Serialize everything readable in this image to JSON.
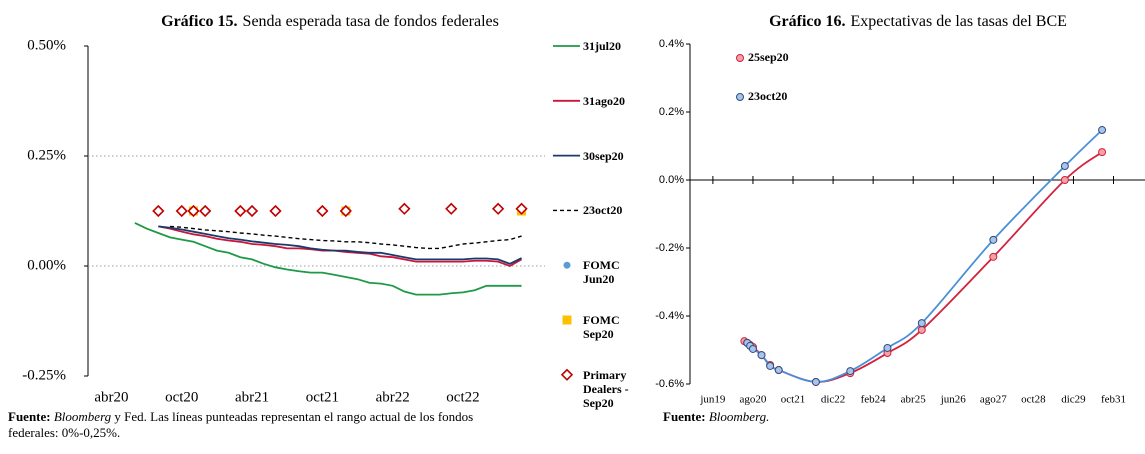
{
  "chart_data": [
    {
      "type": "line",
      "label": "Gráfico 15.",
      "title": "Senda esperada tasa de fondos federales",
      "source_label": "Fuente:",
      "source": "Bloomberg",
      "note": "y Fed. Las líneas punteadas representan el rango actual de los fondos federales: 0%-0,25%.",
      "xlim": [
        "2020-02",
        "2023-05"
      ],
      "xticks": [
        {
          "value": "2020-04",
          "label": "abr20"
        },
        {
          "value": "2020-10",
          "label": "oct20"
        },
        {
          "value": "2021-04",
          "label": "abr21"
        },
        {
          "value": "2021-10",
          "label": "oct21"
        },
        {
          "value": "2022-04",
          "label": "abr22"
        },
        {
          "value": "2022-10",
          "label": "oct22"
        }
      ],
      "ylim": [
        -0.25,
        0.5
      ],
      "yticks": [
        {
          "value": -0.25,
          "label": "-0.25%"
        },
        {
          "value": 0,
          "label": "0.00%"
        },
        {
          "value": 0.25,
          "label": "0.25%"
        },
        {
          "value": 0.5,
          "label": "0.50%"
        }
      ],
      "hlines": [
        0,
        0.25
      ],
      "legend": "right",
      "x": [
        "2020-06",
        "2020-07",
        "2020-08",
        "2020-09",
        "2020-10",
        "2020-11",
        "2020-12",
        "2021-01",
        "2021-02",
        "2021-03",
        "2021-04",
        "2021-05",
        "2021-06",
        "2021-07",
        "2021-08",
        "2021-09",
        "2021-10",
        "2021-11",
        "2021-12",
        "2022-01",
        "2022-02",
        "2022-03",
        "2022-04",
        "2022-05",
        "2022-06",
        "2022-07",
        "2022-08",
        "2022-09",
        "2022-10",
        "2022-11",
        "2022-12",
        "2023-01",
        "2023-02",
        "2023-03"
      ],
      "series": [
        {
          "name": "31jul20",
          "color": "#1e9a45",
          "line": "solid",
          "values": [
            0.098,
            0.085,
            0.075,
            0.065,
            0.06,
            0.055,
            0.045,
            0.035,
            0.03,
            0.02,
            0.015,
            0.005,
            -0.003,
            -0.008,
            -0.012,
            -0.015,
            -0.015,
            -0.02,
            -0.025,
            -0.03,
            -0.038,
            -0.04,
            -0.045,
            -0.058,
            -0.065,
            -0.065,
            -0.065,
            -0.062,
            -0.06,
            -0.055,
            -0.045,
            -0.045,
            -0.045,
            -0.045
          ]
        },
        {
          "name": "31ago20",
          "color": "#c8163c",
          "line": "solid",
          "values": [
            null,
            null,
            0.09,
            0.085,
            0.078,
            0.072,
            0.068,
            0.062,
            0.058,
            0.055,
            0.05,
            0.048,
            0.045,
            0.04,
            0.04,
            0.038,
            0.035,
            0.035,
            0.032,
            0.03,
            0.028,
            0.022,
            0.02,
            0.015,
            0.01,
            0.01,
            0.01,
            0.01,
            0.01,
            0.012,
            0.012,
            0.01,
            0.0,
            0.015
          ]
        },
        {
          "name": "30sep20",
          "color": "#1b3a6b",
          "line": "solid",
          "values": [
            null,
            null,
            0.09,
            0.087,
            0.083,
            0.078,
            0.073,
            0.068,
            0.063,
            0.06,
            0.056,
            0.053,
            0.05,
            0.048,
            0.045,
            0.04,
            0.037,
            0.035,
            0.035,
            0.032,
            0.03,
            0.03,
            0.025,
            0.02,
            0.015,
            0.015,
            0.015,
            0.015,
            0.015,
            0.017,
            0.017,
            0.015,
            0.005,
            0.018
          ]
        },
        {
          "name": "23oct20",
          "color": "#000000",
          "line": "dashed",
          "values": [
            null,
            null,
            null,
            0.09,
            0.088,
            0.085,
            0.082,
            0.08,
            0.078,
            0.075,
            0.073,
            0.07,
            0.068,
            0.065,
            0.062,
            0.06,
            0.058,
            0.057,
            0.055,
            0.055,
            0.053,
            0.05,
            0.048,
            0.045,
            0.042,
            0.04,
            0.04,
            0.045,
            0.05,
            0.052,
            0.055,
            0.058,
            0.06,
            0.068
          ]
        },
        {
          "name": "FOMC Jun20",
          "color": "#5b9bd5",
          "marker": "circle",
          "x": [
            "2020-11",
            "2021-12",
            "2023-03"
          ],
          "values": [
            0.125,
            0.125,
            0.125
          ]
        },
        {
          "name": "FOMC Sep20",
          "color": "#ffc000",
          "marker": "square",
          "x": [
            "2020-11",
            "2021-12",
            "2023-03"
          ],
          "values": [
            0.125,
            0.125,
            0.125
          ]
        },
        {
          "name": "Primary Dealers - Sep20",
          "color": "#c00000",
          "marker": "diamond",
          "x": [
            "2020-08",
            "2020-10",
            "2020-11",
            "2020-12",
            "2021-03",
            "2021-04",
            "2021-06",
            "2021-10",
            "2021-12",
            "2022-05",
            "2022-09",
            "2023-01",
            "2023-03"
          ],
          "values": [
            0.125,
            0.125,
            0.125,
            0.125,
            0.125,
            0.125,
            0.125,
            0.125,
            0.125,
            0.13,
            0.13,
            0.13,
            0.13
          ]
        }
      ]
    },
    {
      "type": "line",
      "label": "Gráfico 16.",
      "title": "Expectativas de las tasas del BCE",
      "source_label": "Fuente:",
      "source": "Bloomberg.",
      "xlim": [
        "2018-10",
        "2032-01"
      ],
      "xticks": [
        {
          "value": "2019-06",
          "label": "jun19"
        },
        {
          "value": "2020-08",
          "label": "ago20"
        },
        {
          "value": "2021-10",
          "label": "oct21"
        },
        {
          "value": "2022-12",
          "label": "dic22"
        },
        {
          "value": "2024-02",
          "label": "feb24"
        },
        {
          "value": "2025-04",
          "label": "abr25"
        },
        {
          "value": "2026-06",
          "label": "jun26"
        },
        {
          "value": "2027-08",
          "label": "ago27"
        },
        {
          "value": "2028-10",
          "label": "oct28"
        },
        {
          "value": "2029-12",
          "label": "dic29"
        },
        {
          "value": "2031-02",
          "label": "feb31"
        }
      ],
      "ylim": [
        -0.6,
        0.4
      ],
      "yticks": [
        {
          "value": -0.6,
          "label": "-0.6%"
        },
        {
          "value": -0.4,
          "label": "-0.4%"
        },
        {
          "value": -0.2,
          "label": "-0.2%"
        },
        {
          "value": 0,
          "label": "0.0%"
        },
        {
          "value": 0.2,
          "label": "0.2%"
        },
        {
          "value": 0.4,
          "label": "0.4%"
        }
      ],
      "axis_cross": 0,
      "legend": "top-left",
      "series": [
        {
          "name": "25sep20",
          "color": "#d4213d",
          "fill": "#f3a3a8",
          "line": "smooth",
          "marker": "circle",
          "x": [
            "2020-05",
            "2020-06",
            "2020-07",
            "2020-08",
            "2020-11",
            "2021-02",
            "2021-05",
            "2022-06",
            "2023-06",
            "2024-07",
            "2025-07",
            "2027-08",
            "2029-09",
            "2030-10"
          ],
          "values": [
            -0.474,
            -0.479,
            -0.485,
            -0.491,
            -0.515,
            -0.544,
            -0.559,
            -0.594,
            -0.568,
            -0.509,
            -0.441,
            -0.226,
            0.0,
            0.082
          ]
        },
        {
          "name": "23oct20",
          "color": "#2f4d85",
          "linecolor": "#4a90d9",
          "fill": "#a9c4e6",
          "line": "smooth",
          "marker": "circle",
          "x": [
            "2020-06",
            "2020-07",
            "2020-08",
            "2020-11",
            "2021-02",
            "2021-05",
            "2022-06",
            "2023-06",
            "2024-07",
            "2025-07",
            "2027-08",
            "2029-09",
            "2030-10"
          ],
          "values": [
            -0.479,
            -0.488,
            -0.497,
            -0.515,
            -0.547,
            -0.559,
            -0.594,
            -0.562,
            -0.494,
            -0.421,
            -0.176,
            0.041,
            0.147
          ]
        }
      ]
    }
  ]
}
